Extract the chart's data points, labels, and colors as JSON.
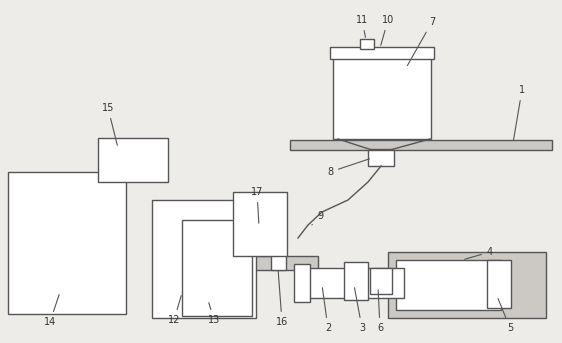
{
  "bg_color": "#eeece8",
  "line_color": "#555555",
  "line_width": 1.0,
  "fig_w": 5.62,
  "fig_h": 3.43,
  "dpi": 100
}
